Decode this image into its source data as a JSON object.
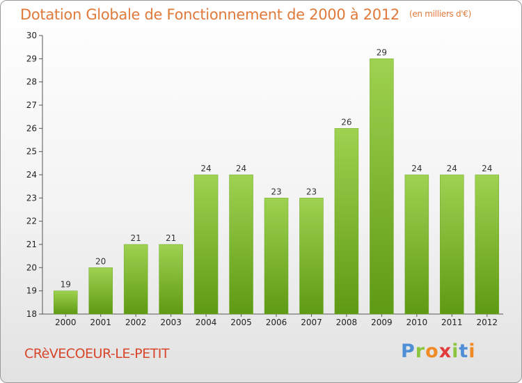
{
  "title": "Dotation Globale de Fonctionnement de 2000 à 2012",
  "subtitle": "(en milliers d'€)",
  "commune": "CRèVECOEUR-LE-PETIT",
  "logo": {
    "text": "Proxiti",
    "letters": [
      {
        "char": "P",
        "color": "#4f8fd6"
      },
      {
        "char": "r",
        "color": "#8cc63f"
      },
      {
        "char": "o",
        "color": "#f08a24"
      },
      {
        "char": "x",
        "color": "#e23b3b"
      },
      {
        "char": "i",
        "color": "#8cc63f"
      },
      {
        "char": "t",
        "color": "#4f8fd6"
      },
      {
        "char": "i",
        "color": "#f08a24"
      }
    ]
  },
  "colors": {
    "title": "#e07a3a",
    "commune": "#d8452a",
    "bar_top": "#9ed250",
    "bar_bottom": "#5f9a14"
  },
  "chart_data": {
    "type": "bar",
    "categories": [
      "2000",
      "2001",
      "2002",
      "2003",
      "2004",
      "2005",
      "2006",
      "2007",
      "2008",
      "2009",
      "2010",
      "2011",
      "2012"
    ],
    "values": [
      19,
      20,
      21,
      21,
      24,
      24,
      23,
      23,
      26,
      29,
      24,
      24,
      24
    ],
    "ylim": [
      18,
      30
    ],
    "yticks": [
      18,
      19,
      20,
      21,
      22,
      23,
      24,
      25,
      26,
      27,
      28,
      29,
      30
    ],
    "title": "Dotation Globale de Fonctionnement de 2000 à 2012",
    "ylabel": "",
    "xlabel": "",
    "grid": false,
    "data_labels": true
  }
}
